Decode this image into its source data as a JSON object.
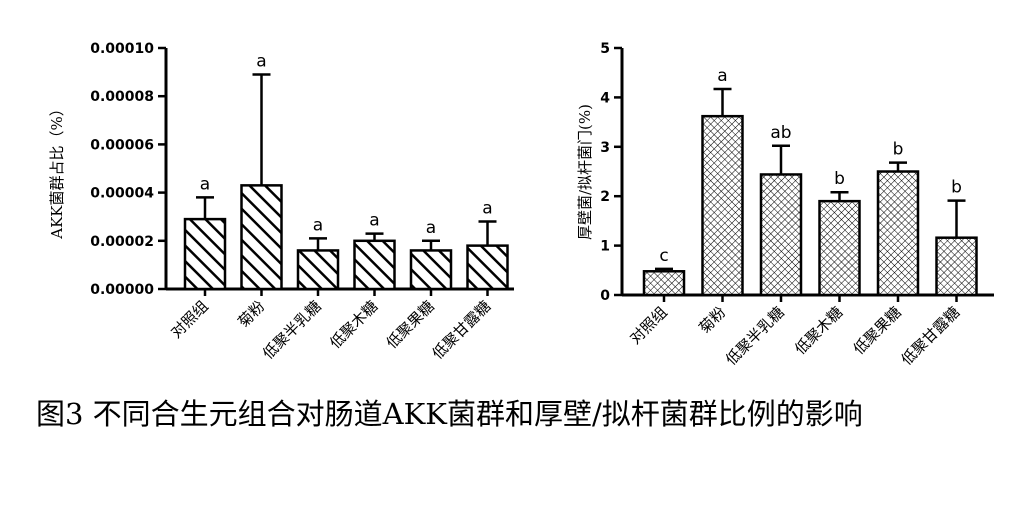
{
  "caption": "图3 不同合生元组合对肠道AKK菌群和厚壁/拟杆菌群比例的影响",
  "chart_data": [
    {
      "type": "bar",
      "title": "",
      "xlabel": "",
      "ylabel": "AKK菌群占比（%）",
      "categories": [
        "对照组",
        "菊粉",
        "低聚半乳糖",
        "低聚木糖",
        "低聚果糖",
        "低聚甘露糖"
      ],
      "values": [
        2.9e-05,
        4.3e-05,
        1.6e-05,
        2e-05,
        1.6e-05,
        1.8e-05
      ],
      "errors": [
        9e-06,
        4.6e-05,
        5e-06,
        3e-06,
        4e-06,
        1e-05
      ],
      "significance": [
        "a",
        "a",
        "a",
        "a",
        "a",
        "a"
      ],
      "ylim": [
        0,
        0.0001
      ],
      "yticks": [
        0,
        2e-05,
        4e-05,
        6e-05,
        8e-05,
        0.0001
      ],
      "ytick_labels": [
        "0.00000",
        "0.00002",
        "0.00004",
        "0.00006",
        "0.00008",
        "0.00010"
      ],
      "pattern": "diagonal-hatch",
      "grid": false
    },
    {
      "type": "bar",
      "title": "",
      "xlabel": "",
      "ylabel": "厚壁菌/拟杆菌门(%)",
      "categories": [
        "对照组",
        "菊粉",
        "低聚半乳糖",
        "低聚木糖",
        "低聚果糖",
        "低聚甘露糖"
      ],
      "values": [
        0.48,
        3.62,
        2.44,
        1.9,
        2.5,
        1.16
      ],
      "errors": [
        0.05,
        0.55,
        0.58,
        0.18,
        0.18,
        0.75
      ],
      "significance": [
        "c",
        "a",
        "ab",
        "b",
        "b",
        "b"
      ],
      "ylim": [
        0,
        5
      ],
      "yticks": [
        0,
        1,
        2,
        3,
        4,
        5
      ],
      "ytick_labels": [
        "0",
        "1",
        "2",
        "3",
        "4",
        "5"
      ],
      "pattern": "crosshatch",
      "grid": false
    }
  ]
}
